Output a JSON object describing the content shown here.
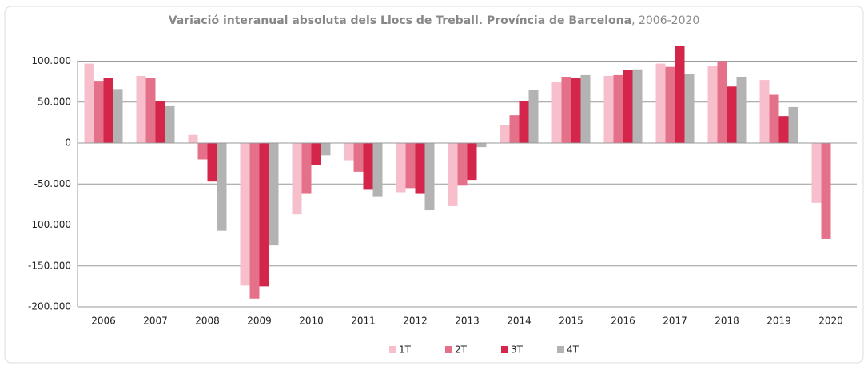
{
  "chart_data": {
    "type": "bar",
    "title": "Variació interanual absoluta dels Llocs de Treball. Província de Barcelona",
    "subtitle": ", 2006-2020",
    "categories": [
      "2006",
      "2007",
      "2008",
      "2009",
      "2010",
      "2011",
      "2012",
      "2013",
      "2014",
      "2015",
      "2016",
      "2017",
      "2018",
      "2019",
      "2020"
    ],
    "series": [
      {
        "name": "1T",
        "color": "#f7bfcc",
        "values": [
          97000,
          82000,
          10000,
          -174000,
          -87000,
          -21000,
          -60000,
          -77000,
          22000,
          75000,
          82000,
          97000,
          94000,
          77000,
          -73000
        ]
      },
      {
        "name": "2T",
        "color": "#e5708a",
        "values": [
          76000,
          80000,
          -20000,
          -190000,
          -62000,
          -35000,
          -55000,
          -52000,
          34000,
          81000,
          83000,
          93000,
          100000,
          59000,
          -117000
        ]
      },
      {
        "name": "3T",
        "color": "#d4254a",
        "values": [
          80000,
          51000,
          -47000,
          -175000,
          -27000,
          -57000,
          -62000,
          -45000,
          51000,
          79000,
          89000,
          119000,
          69000,
          33000,
          null
        ]
      },
      {
        "name": "4T",
        "color": "#b3b3b3",
        "values": [
          66000,
          45000,
          -107000,
          -125000,
          -15000,
          -65000,
          -82000,
          -5000,
          65000,
          83000,
          90000,
          84000,
          81000,
          44000,
          null
        ]
      }
    ],
    "ylim": [
      -200000,
      120000
    ],
    "yticks": [
      {
        "value": -200000,
        "label": "-200.000"
      },
      {
        "value": -150000,
        "label": "-150.000"
      },
      {
        "value": -100000,
        "label": "-100.000"
      },
      {
        "value": -50000,
        "label": "-50.000"
      },
      0,
      {
        "value": 50000,
        "label": "50.000"
      },
      {
        "value": 100000,
        "label": "100.000"
      }
    ],
    "grid": true,
    "legend": "bottom"
  }
}
